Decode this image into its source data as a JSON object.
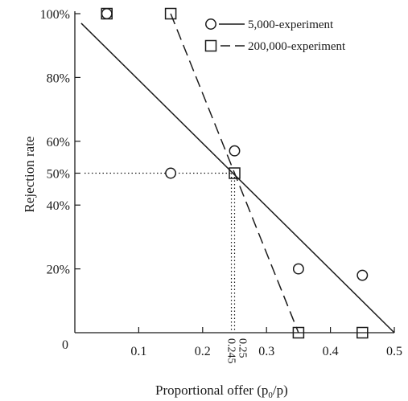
{
  "chart_data": {
    "type": "scatter",
    "xlabel": "Proportional offer",
    "xlabel_formula": {
      "open": "(p",
      "sub": "0",
      "close": "/p)"
    },
    "ylabel": "Rejection rate",
    "xlim": [
      0,
      0.5
    ],
    "ylim": [
      0,
      100
    ],
    "x_ticks": [
      {
        "value": 0,
        "label": "0"
      },
      {
        "value": 0.1,
        "label": "0.1"
      },
      {
        "value": 0.2,
        "label": "0.2"
      },
      {
        "value": 0.3,
        "label": "0.3"
      },
      {
        "value": 0.4,
        "label": "0.4"
      },
      {
        "value": 0.5,
        "label": "0.5"
      }
    ],
    "y_ticks": [
      {
        "value": 20,
        "label": "20%"
      },
      {
        "value": 40,
        "label": "40%"
      },
      {
        "value": 50,
        "label": "50%"
      },
      {
        "value": 60,
        "label": "60%"
      },
      {
        "value": 80,
        "label": "80%"
      },
      {
        "value": 100,
        "label": "100%"
      }
    ],
    "series": [
      {
        "name": "5,000-experiment",
        "marker": "circle",
        "line_style": "solid",
        "points": [
          [
            0.05,
            100
          ],
          [
            0.15,
            50
          ],
          [
            0.25,
            57
          ],
          [
            0.35,
            20
          ],
          [
            0.45,
            18
          ]
        ],
        "fit_line": [
          [
            0.01,
            97
          ],
          [
            0.5,
            0
          ]
        ]
      },
      {
        "name": "200,000-experiment",
        "marker": "square",
        "line_style": "dashed",
        "points": [
          [
            0.05,
            100
          ],
          [
            0.15,
            100
          ],
          [
            0.25,
            50
          ],
          [
            0.35,
            0
          ],
          [
            0.45,
            0
          ]
        ],
        "fit_line": [
          [
            0.15,
            100
          ],
          [
            0.35,
            0
          ]
        ]
      }
    ],
    "annotations": [
      {
        "type": "hline",
        "y": 50,
        "x_to": 0.245,
        "style": "dotted"
      },
      {
        "type": "vline",
        "x": 0.245,
        "y_to": 50,
        "style": "dotted"
      },
      {
        "type": "vline",
        "x": 0.25,
        "y_to": 50,
        "style": "dotted"
      },
      {
        "type": "text",
        "label": "0.245",
        "x": 0.245,
        "rotated": true
      },
      {
        "type": "text",
        "label": "0.25",
        "x": 0.25,
        "rotated": true
      }
    ],
    "legend": {
      "position": "top-right"
    },
    "grid": false
  }
}
